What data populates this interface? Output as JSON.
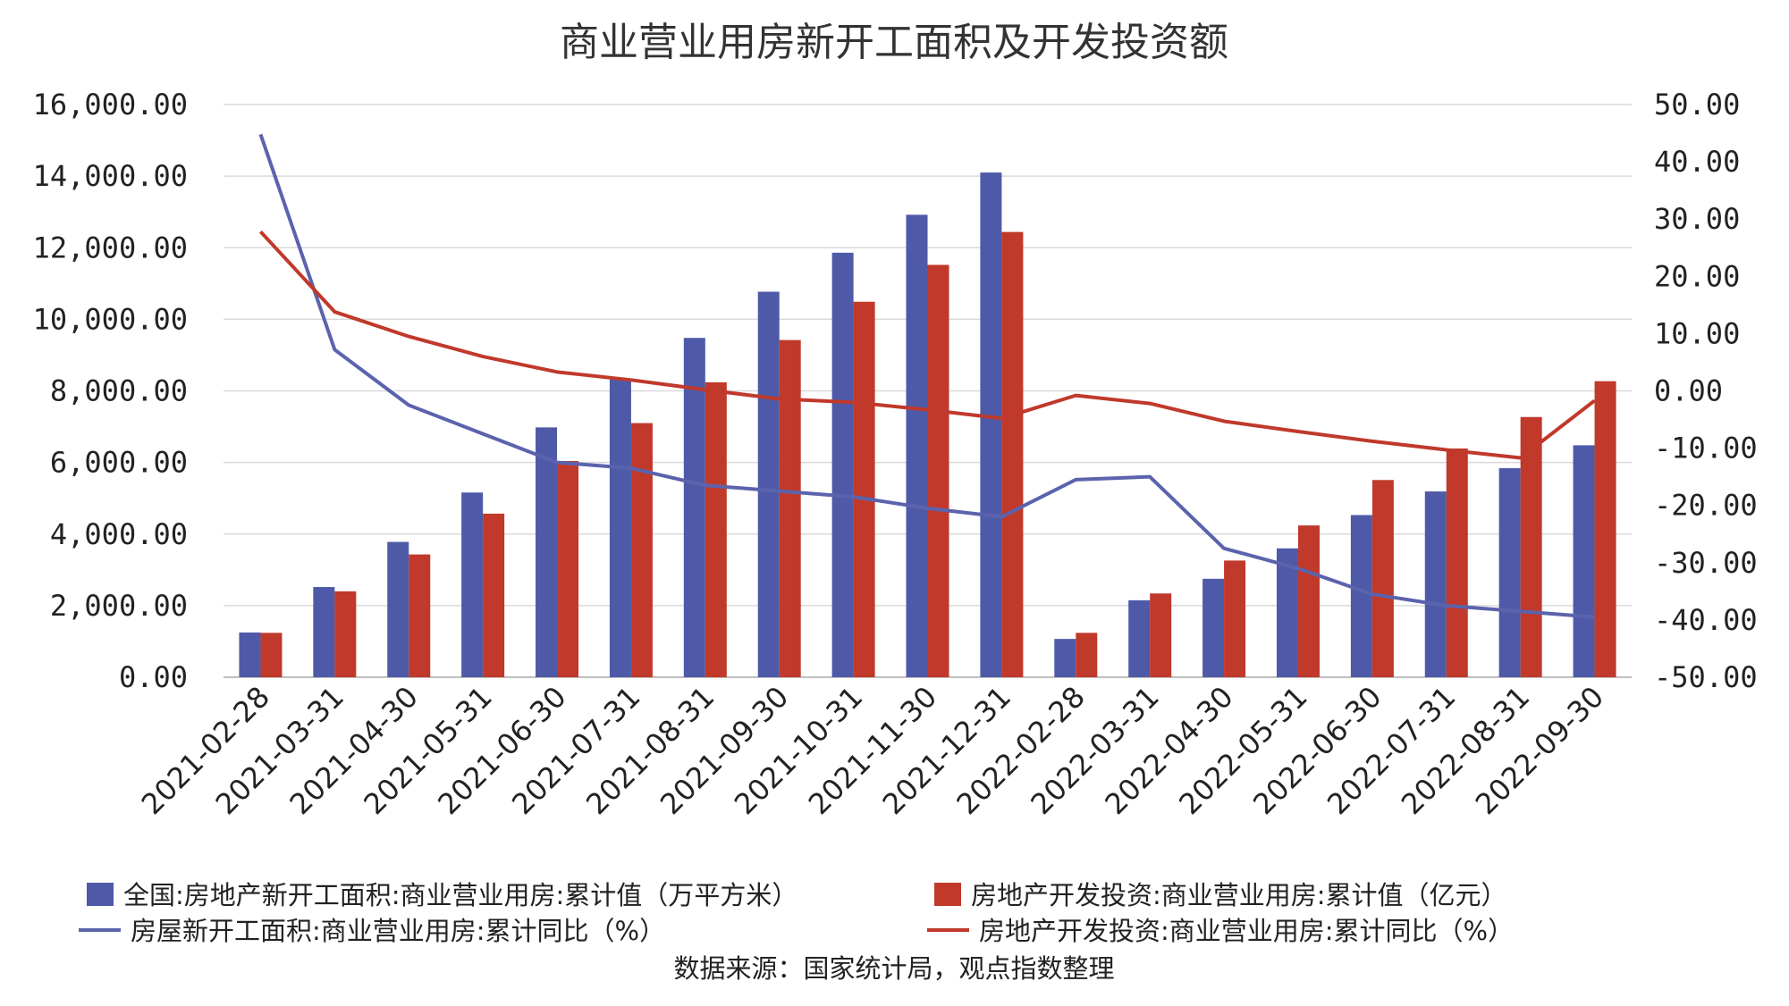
{
  "chart_data": {
    "type": "bar",
    "title": "商业营业用房新开工面积及开发投资额",
    "categories": [
      "2021-02-28",
      "2021-03-31",
      "2021-04-30",
      "2021-05-31",
      "2021-06-30",
      "2021-07-31",
      "2021-08-31",
      "2021-09-30",
      "2021-10-31",
      "2021-11-30",
      "2021-12-31",
      "2022-02-28",
      "2022-03-31",
      "2022-04-30",
      "2022-05-31",
      "2022-06-30",
      "2022-07-31",
      "2022-08-31",
      "2022-09-30"
    ],
    "left_axis": {
      "ylim": [
        0,
        16000
      ],
      "ticks": [
        0,
        2000,
        4000,
        6000,
        8000,
        10000,
        12000,
        14000,
        16000
      ],
      "tick_labels": [
        "0.00",
        "2,000.00",
        "4,000.00",
        "6,000.00",
        "8,000.00",
        "10,000.00",
        "12,000.00",
        "14,000.00",
        "16,000.00"
      ]
    },
    "right_axis": {
      "ylim": [
        -50,
        50
      ],
      "ticks": [
        -50,
        -40,
        -30,
        -20,
        -10,
        0,
        10,
        20,
        30,
        40,
        50
      ],
      "tick_labels": [
        "-50.00",
        "-40.00",
        "-30.00",
        "-20.00",
        "-10.00",
        "0.00",
        "10.00",
        "20.00",
        "30.00",
        "40.00",
        "50.00"
      ]
    },
    "series": [
      {
        "name": "全国:房地产新开工面积:商业营业用房:累计值（万平方米）",
        "type": "bar",
        "axis": "left",
        "color": "#4e5aa8",
        "values": [
          1250,
          2520,
          3780,
          5160,
          6980,
          8330,
          9480,
          10770,
          11860,
          12920,
          14100,
          1070,
          2150,
          2750,
          3600,
          4530,
          5190,
          5840,
          6480
        ]
      },
      {
        "name": "房地产开发投资:商业营业用房:累计值（亿元）",
        "type": "bar",
        "axis": "left",
        "color": "#c0392b",
        "values": [
          1240,
          2400,
          3430,
          4570,
          6040,
          7100,
          8240,
          9420,
          10490,
          11520,
          12440,
          1240,
          2340,
          3260,
          4240,
          5510,
          6390,
          7270,
          8270
        ]
      },
      {
        "name": "房屋新开工面积:商业营业用房:累计同比（%）",
        "type": "line",
        "axis": "right",
        "color": "#5b63ad",
        "values": [
          44.8,
          7.2,
          -2.5,
          -7.5,
          -12.5,
          -13.5,
          -16.5,
          -17.5,
          -18.5,
          -20.5,
          -22,
          -15.5,
          -15,
          -27.5,
          -31,
          -35.5,
          -37.5,
          -38.5,
          -39.5
        ]
      },
      {
        "name": "房地产开发投资:商业营业用房:累计同比（%）",
        "type": "line",
        "axis": "right",
        "color": "#c0392b",
        "values": [
          27.8,
          13.8,
          9.5,
          6.0,
          3.3,
          1.9,
          0.2,
          -1.4,
          -2.0,
          -3.3,
          -4.8,
          -0.8,
          -2.2,
          -5.3,
          -7.1,
          -8.8,
          -10.3,
          -11.7,
          -1.7
        ]
      }
    ],
    "legend_position": "bottom",
    "grid": true
  },
  "source_note": "数据来源：国家统计局，观点指数整理"
}
